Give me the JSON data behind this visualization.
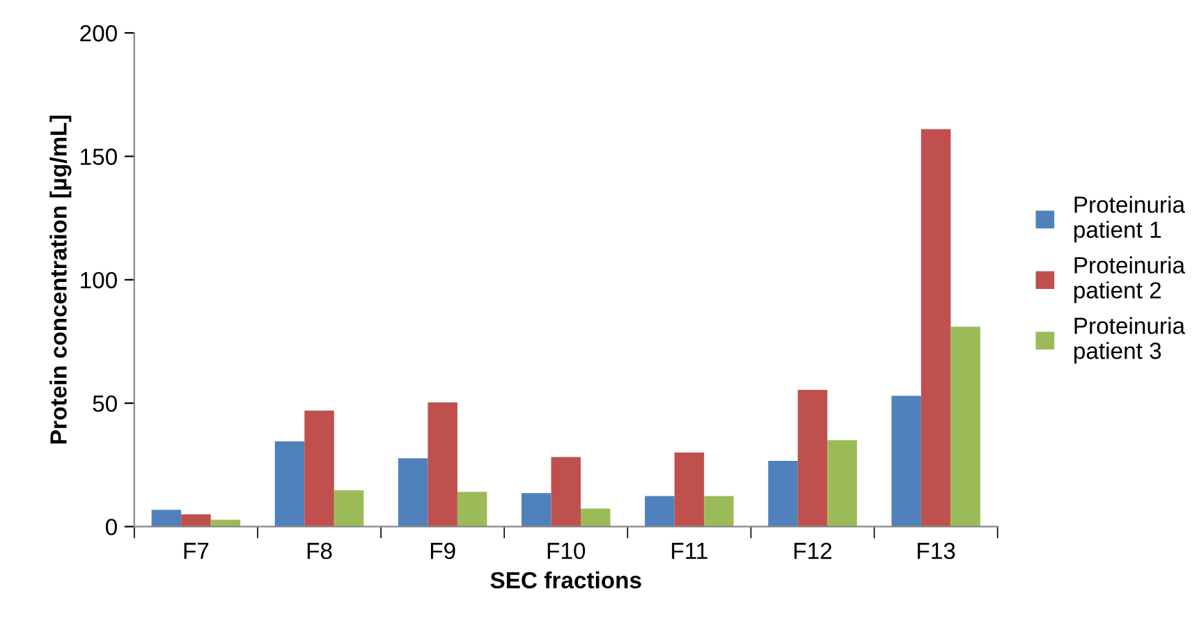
{
  "chart_data": {
    "type": "bar",
    "xlabel": "SEC fractions",
    "ylabel": "Protein concentration [µg/mL]",
    "categories": [
      "F7",
      "F8",
      "F9",
      "F10",
      "F11",
      "F12",
      "F13"
    ],
    "series": [
      {
        "name": "Proteinuria\npatient 1",
        "color": "#4f81bd",
        "values": [
          6.8,
          34.5,
          27.7,
          13.6,
          12.4,
          26.6,
          53
        ]
      },
      {
        "name": "Proteinuria\npatient 2",
        "color": "#c0504d",
        "values": [
          5,
          47,
          50.3,
          28.2,
          30,
          55.4,
          161
        ]
      },
      {
        "name": "Proteinuria\npatient 3",
        "color": "#9bbb59",
        "values": [
          2.8,
          14.7,
          14.1,
          7.3,
          12.4,
          35,
          81
        ]
      }
    ],
    "ylim": [
      0,
      200
    ],
    "yticks": [
      0,
      50,
      100,
      150,
      200
    ],
    "grid": false,
    "legend": "right"
  }
}
